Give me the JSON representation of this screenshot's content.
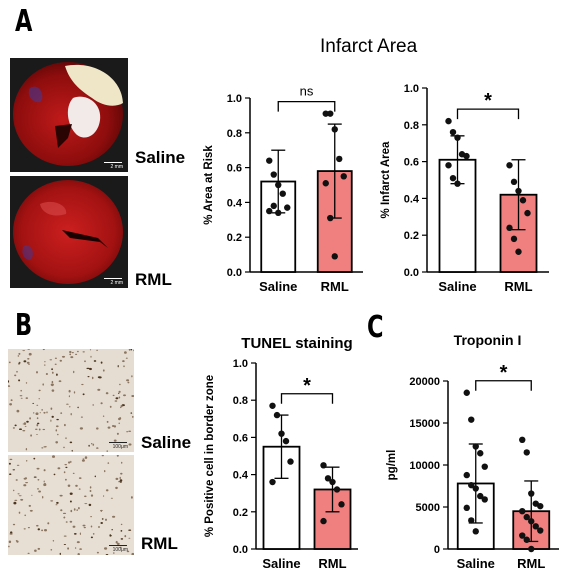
{
  "panel_letters": {
    "a": "A",
    "b": "B",
    "c": "C"
  },
  "image_labels": {
    "a_top": "Saline",
    "a_bottom": "RML",
    "b_top": "Saline",
    "b_bottom": "RML",
    "a_top_scale": "2 mm",
    "a_bottom_scale": "2 mm",
    "b_top_scale": "100μm",
    "b_bottom_scale": "100μm"
  },
  "section_titles": {
    "a": "Infarct Area"
  },
  "colors": {
    "saline": "#ffffff",
    "rml": "#f08080",
    "edge": "#000000"
  },
  "chart_data": [
    {
      "id": "area-at-risk",
      "type": "bar",
      "title": "",
      "categories": [
        "Saline",
        "RML"
      ],
      "values": [
        0.52,
        0.58
      ],
      "sd": [
        0.18,
        0.27
      ],
      "points": [
        [
          0.64,
          0.56,
          0.5,
          0.45,
          0.37,
          0.35,
          0.38,
          0.34
        ],
        [
          0.91,
          0.91,
          0.82,
          0.65,
          0.55,
          0.51,
          0.31,
          0.09
        ]
      ],
      "ylabel": "% Area at  Risk",
      "ylim": [
        0,
        1.0
      ],
      "yticks": [
        "0.0",
        "0.2",
        "0.4",
        "0.6",
        "0.8",
        "1.0"
      ],
      "yticks_values": [
        0,
        0.2,
        0.4,
        0.6,
        0.8,
        1.0
      ],
      "significance": "ns"
    },
    {
      "id": "infarct-area",
      "type": "bar",
      "title": "",
      "categories": [
        "Saline",
        "RML"
      ],
      "values": [
        0.61,
        0.42
      ],
      "sd": [
        0.13,
        0.19
      ],
      "points": [
        [
          0.82,
          0.76,
          0.73,
          0.64,
          0.63,
          0.58,
          0.51,
          0.48
        ],
        [
          0.58,
          0.49,
          0.44,
          0.39,
          0.32,
          0.24,
          0.18,
          0.11
        ]
      ],
      "ylabel": "% Infarct Area",
      "ylim": [
        0,
        1.0
      ],
      "yticks": [
        "0.0",
        "0.2",
        "0.4",
        "0.6",
        "0.8",
        "1.0"
      ],
      "yticks_values": [
        0,
        0.2,
        0.4,
        0.6,
        0.8,
        1.0
      ],
      "significance": "*"
    },
    {
      "id": "tunel",
      "type": "bar",
      "title": "TUNEL staining",
      "categories": [
        "Saline",
        "RML"
      ],
      "values": [
        0.55,
        0.32
      ],
      "sd": [
        0.17,
        0.12
      ],
      "points": [
        [
          0.77,
          0.72,
          0.62,
          0.58,
          0.47,
          0.36
        ],
        [
          0.45,
          0.38,
          0.36,
          0.32,
          0.24,
          0.15
        ]
      ],
      "ylabel": "% Positive cell in border zone",
      "ylim": [
        0,
        1.0
      ],
      "yticks": [
        "0.0",
        "0.2",
        "0.4",
        "0.6",
        "0.8",
        "1.0"
      ],
      "yticks_values": [
        0,
        0.2,
        0.4,
        0.6,
        0.8,
        1.0
      ],
      "significance": "*"
    },
    {
      "id": "troponin",
      "type": "bar",
      "title": "Troponin  I",
      "categories": [
        "Saline",
        "RML"
      ],
      "values": [
        7800,
        4500
      ],
      "sd": [
        4700,
        3600
      ],
      "points": [
        [
          18600,
          15400,
          12200,
          11400,
          9800,
          8800,
          7600,
          7200,
          6300,
          5900,
          4900,
          3400,
          2100
        ],
        [
          13000,
          11500,
          6600,
          5400,
          5100,
          4500,
          3800,
          3300,
          2700,
          2200,
          1600,
          1100,
          0
        ]
      ],
      "ylabel": "pg/ml",
      "ylim": [
        0,
        20000
      ],
      "yticks": [
        "0",
        "5000",
        "10000",
        "15000",
        "20000"
      ],
      "yticks_values": [
        0,
        5000,
        10000,
        15000,
        20000
      ],
      "significance": "*"
    }
  ]
}
